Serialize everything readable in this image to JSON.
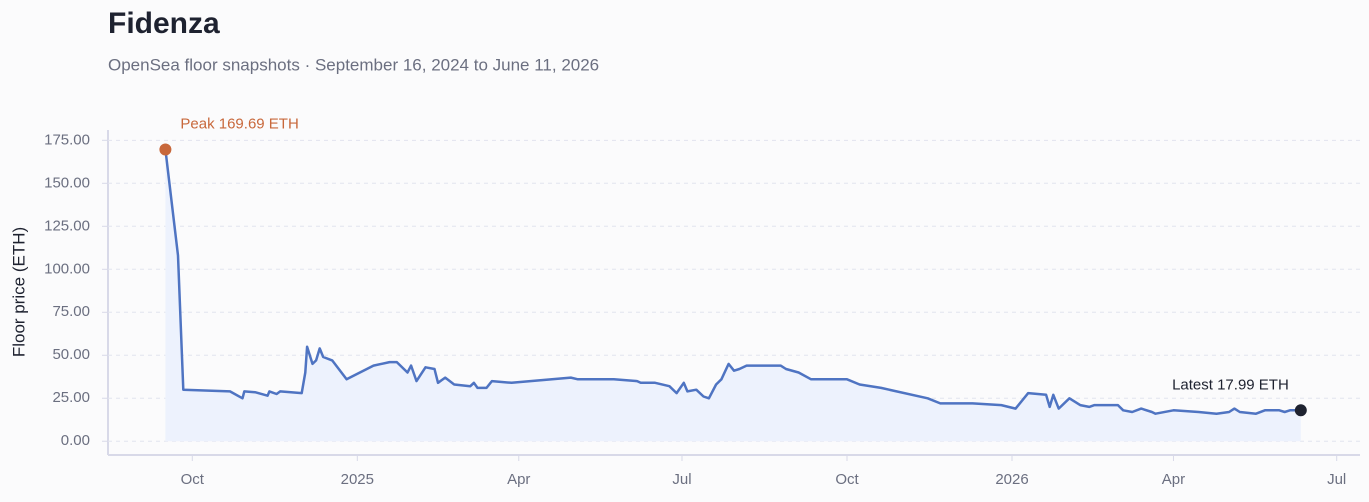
{
  "chart_data": {
    "type": "line",
    "title": "Fidenza",
    "subtitle": "OpenSea floor snapshots · September 16, 2024 to June 11, 2026",
    "y_label": "Floor price (ETH)",
    "grid": true,
    "xlim": [
      "2024-08-15",
      "2026-07-14"
    ],
    "ylim": [
      -8,
      181
    ],
    "yticks": [
      {
        "value": 0,
        "label": "0.00"
      },
      {
        "value": 25,
        "label": "25.00"
      },
      {
        "value": 50,
        "label": "50.00"
      },
      {
        "value": 75,
        "label": "75.00"
      },
      {
        "value": 100,
        "label": "100.00"
      },
      {
        "value": 125,
        "label": "125.00"
      },
      {
        "value": 150,
        "label": "150.00"
      },
      {
        "value": 175,
        "label": "175.00"
      }
    ],
    "xticks": [
      {
        "value": "2024-10-01",
        "label": "Oct"
      },
      {
        "value": "2025-01-01",
        "label": "2025"
      },
      {
        "value": "2025-04-01",
        "label": "Apr"
      },
      {
        "value": "2025-07-01",
        "label": "Jul"
      },
      {
        "value": "2025-10-01",
        "label": "Oct"
      },
      {
        "value": "2026-01-01",
        "label": "2026"
      },
      {
        "value": "2026-04-01",
        "label": "Apr"
      },
      {
        "value": "2026-07-01",
        "label": "Jul"
      }
    ],
    "x": [
      "2024-09-16",
      "2024-09-23",
      "2024-09-26",
      "2024-10-22",
      "2024-10-29",
      "2024-10-30",
      "2024-11-05",
      "2024-11-12",
      "2024-11-13",
      "2024-11-17",
      "2024-11-19",
      "2024-12-01",
      "2024-12-03",
      "2024-12-04",
      "2024-12-07",
      "2024-12-09",
      "2024-12-11",
      "2024-12-13",
      "2024-12-18",
      "2024-12-26",
      "2025-01-10",
      "2025-01-19",
      "2025-01-23",
      "2025-01-29",
      "2025-01-31",
      "2025-02-03",
      "2025-02-08",
      "2025-02-13",
      "2025-02-15",
      "2025-02-19",
      "2025-02-24",
      "2025-03-05",
      "2025-03-07",
      "2025-03-09",
      "2025-03-14",
      "2025-03-17",
      "2025-03-28",
      "2025-04-30",
      "2025-05-04",
      "2025-05-24",
      "2025-06-06",
      "2025-06-08",
      "2025-06-16",
      "2025-06-24",
      "2025-06-28",
      "2025-07-02",
      "2025-07-04",
      "2025-07-09",
      "2025-07-13",
      "2025-07-16",
      "2025-07-20",
      "2025-07-23",
      "2025-07-27",
      "2025-07-30",
      "2025-08-02",
      "2025-08-06",
      "2025-08-25",
      "2025-08-28",
      "2025-09-04",
      "2025-09-11",
      "2025-10-01",
      "2025-10-08",
      "2025-10-20",
      "2025-11-15",
      "2025-11-22",
      "2025-12-10",
      "2025-12-26",
      "2026-01-03",
      "2026-01-10",
      "2026-01-20",
      "2026-01-22",
      "2026-01-24",
      "2026-01-27",
      "2026-02-02",
      "2026-02-08",
      "2026-02-13",
      "2026-02-16",
      "2026-03-01",
      "2026-03-04",
      "2026-03-09",
      "2026-03-14",
      "2026-03-20",
      "2026-03-22",
      "2026-04-01",
      "2026-04-15",
      "2026-04-25",
      "2026-05-02",
      "2026-05-05",
      "2026-05-08",
      "2026-05-17",
      "2026-05-22",
      "2026-05-30",
      "2026-06-02",
      "2026-06-05",
      "2026-06-11"
    ],
    "series": [
      {
        "name": "Floor price",
        "color": "#4f74c2",
        "fill": "#edf2fd",
        "values": [
          169.69,
          108,
          30,
          29,
          25,
          29,
          28.5,
          26.5,
          29,
          27.5,
          29,
          28,
          40,
          55,
          45,
          47,
          54,
          49,
          47,
          36,
          44,
          46,
          46,
          40,
          44,
          35,
          43,
          42,
          34,
          37,
          33,
          32,
          34,
          31,
          31,
          35,
          34,
          37,
          36,
          36,
          35,
          34,
          34,
          32,
          28,
          34,
          29,
          30,
          26,
          25,
          33,
          36,
          45,
          41,
          42,
          44,
          44,
          42,
          40,
          36,
          36,
          33,
          31,
          25,
          22,
          22,
          21,
          19,
          28,
          27,
          20,
          27,
          19,
          25,
          21,
          20,
          21,
          21,
          18,
          17,
          19,
          17,
          16,
          18,
          17,
          16,
          17,
          19,
          17,
          16,
          18,
          18,
          17,
          18,
          17.99
        ]
      }
    ],
    "annotations": [
      {
        "text": "Peak 169.69 ETH",
        "color": "#c8683b"
      },
      {
        "text": "Latest 17.99 ETH",
        "color": "#1e2230"
      }
    ]
  }
}
